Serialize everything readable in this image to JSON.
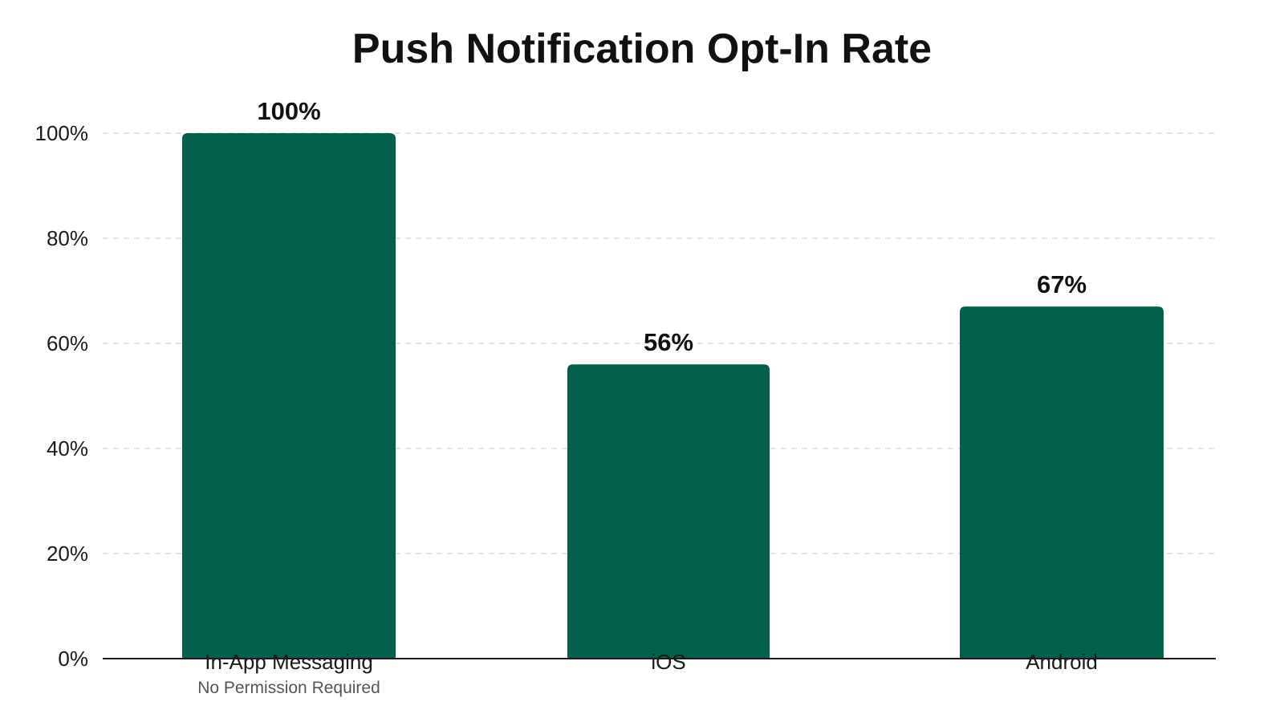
{
  "chart_data": {
    "type": "bar",
    "title": "Push Notification Opt-In Rate",
    "xlabel": "",
    "ylabel": "",
    "categories": [
      "In-App Messaging",
      "iOS",
      "Android"
    ],
    "category_sublabels": [
      "No Permission Required",
      "",
      ""
    ],
    "values": [
      100,
      56,
      67
    ],
    "value_labels": [
      "100%",
      "56%",
      "67%"
    ],
    "ylim": [
      0,
      100
    ],
    "yticks": [
      0,
      20,
      40,
      60,
      80,
      100
    ],
    "ytick_labels": [
      "0%",
      "20%",
      "40%",
      "60%",
      "80%",
      "100%"
    ],
    "grid": true,
    "legend": "none",
    "colors": {
      "bar": "#03604c"
    }
  }
}
